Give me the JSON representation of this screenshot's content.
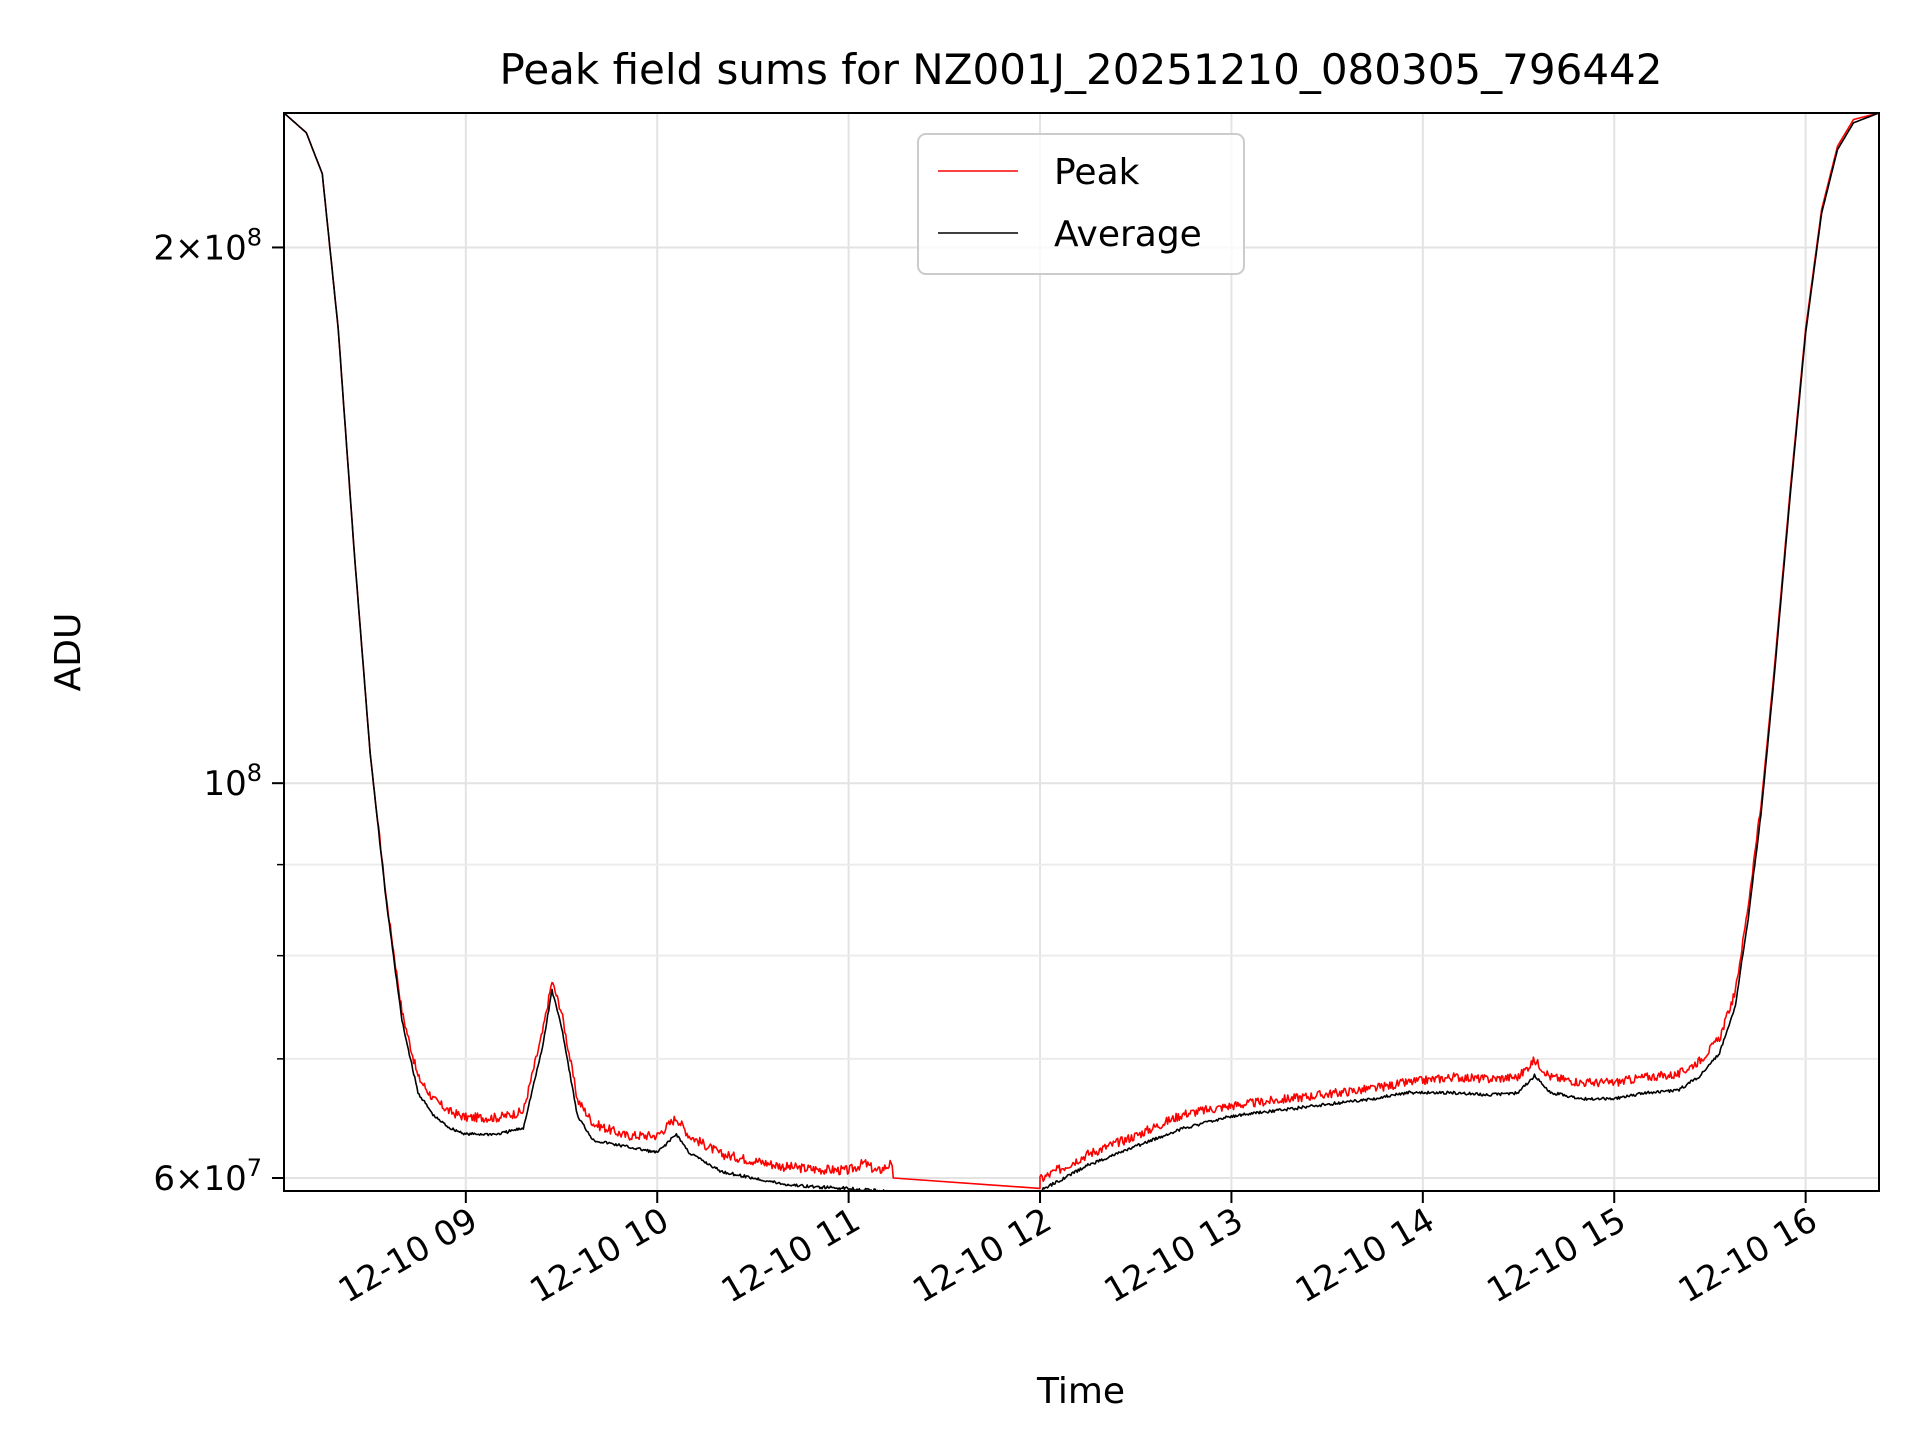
{
  "chart_data": {
    "type": "line",
    "title": "Peak field sums for NZ001J_20251210_080305_796442",
    "xlabel": "Time",
    "ylabel": "ADU",
    "yscale": "log",
    "xlim": [
      "2025-12-10 08:03",
      "2025-12-10 16:23"
    ],
    "ylim": [
      59000000,
      238000000
    ],
    "x_ticks": [
      {
        "value": "2025-12-10 09:00",
        "label": "12-10 09"
      },
      {
        "value": "2025-12-10 10:00",
        "label": "12-10 10"
      },
      {
        "value": "2025-12-10 11:00",
        "label": "12-10 11"
      },
      {
        "value": "2025-12-10 12:00",
        "label": "12-10 12"
      },
      {
        "value": "2025-12-10 13:00",
        "label": "12-10 13"
      },
      {
        "value": "2025-12-10 14:00",
        "label": "12-10 14"
      },
      {
        "value": "2025-12-10 15:00",
        "label": "12-10 15"
      },
      {
        "value": "2025-12-10 16:00",
        "label": "12-10 16"
      }
    ],
    "y_major_ticks": [
      {
        "value": 60000000,
        "mantissa": "6",
        "exponent": "7"
      },
      {
        "value": 100000000,
        "mantissa": "",
        "exponent": "8"
      },
      {
        "value": 200000000,
        "mantissa": "2",
        "exponent": "8"
      }
    ],
    "y_minor_ticks": [
      70000000,
      80000000,
      90000000
    ],
    "grid": true,
    "legend_position": "top-center",
    "series": [
      {
        "name": "Peak",
        "color": "#ff0000",
        "noise": true,
        "x": [
          "2025-12-10 08:03",
          "2025-12-10 08:10",
          "2025-12-10 08:15",
          "2025-12-10 08:20",
          "2025-12-10 08:25",
          "2025-12-10 08:30",
          "2025-12-10 08:35",
          "2025-12-10 08:40",
          "2025-12-10 08:45",
          "2025-12-10 08:50",
          "2025-12-10 08:55",
          "2025-12-10 09:00",
          "2025-12-10 09:10",
          "2025-12-10 09:18",
          "2025-12-10 09:24",
          "2025-12-10 09:27",
          "2025-12-10 09:30",
          "2025-12-10 09:35",
          "2025-12-10 09:40",
          "2025-12-10 09:50",
          "2025-12-10 10:00",
          "2025-12-10 10:06",
          "2025-12-10 10:10",
          "2025-12-10 10:20",
          "2025-12-10 10:30",
          "2025-12-10 10:40",
          "2025-12-10 10:50",
          "2025-12-10 11:00",
          "2025-12-10 11:05",
          "2025-12-10 11:09",
          "2025-12-10 11:13",
          "2025-12-10 11:14",
          "2025-12-10 12:00",
          "2025-12-10 12:00",
          "2025-12-10 12:15",
          "2025-12-10 12:30",
          "2025-12-10 12:45",
          "2025-12-10 13:00",
          "2025-12-10 13:15",
          "2025-12-10 13:30",
          "2025-12-10 13:45",
          "2025-12-10 13:55",
          "2025-12-10 14:10",
          "2025-12-10 14:20",
          "2025-12-10 14:30",
          "2025-12-10 14:35",
          "2025-12-10 14:40",
          "2025-12-10 14:50",
          "2025-12-10 15:00",
          "2025-12-10 15:10",
          "2025-12-10 15:20",
          "2025-12-10 15:27",
          "2025-12-10 15:33",
          "2025-12-10 15:38",
          "2025-12-10 15:42",
          "2025-12-10 15:46",
          "2025-12-10 15:50",
          "2025-12-10 15:55",
          "2025-12-10 16:00",
          "2025-12-10 16:05",
          "2025-12-10 16:10",
          "2025-12-10 16:15",
          "2025-12-10 16:23"
        ],
        "y": [
          238000000,
          232000000,
          220000000,
          180000000,
          135000000,
          104000000,
          86000000,
          74000000,
          68000000,
          66000000,
          65000000,
          64500000,
          64500000,
          65000000,
          72000000,
          77000000,
          74000000,
          66000000,
          64000000,
          63000000,
          63000000,
          64500000,
          63000000,
          61500000,
          61000000,
          60500000,
          60300000,
          60200000,
          60800000,
          60100000,
          60700000,
          60000000,
          59000000,
          59500000,
          61500000,
          63000000,
          64800000,
          65500000,
          66000000,
          66500000,
          67000000,
          67500000,
          68000000,
          67800000,
          68000000,
          69500000,
          68000000,
          67500000,
          67500000,
          68000000,
          68200000,
          69500000,
          71500000,
          76000000,
          85000000,
          97000000,
          115000000,
          145000000,
          180000000,
          210000000,
          228000000,
          236000000,
          238000000
        ]
      },
      {
        "name": "Average",
        "color": "#000000",
        "noise": false,
        "x": [
          "2025-12-10 08:03",
          "2025-12-10 08:10",
          "2025-12-10 08:15",
          "2025-12-10 08:20",
          "2025-12-10 08:25",
          "2025-12-10 08:30",
          "2025-12-10 08:35",
          "2025-12-10 08:40",
          "2025-12-10 08:45",
          "2025-12-10 08:50",
          "2025-12-10 08:55",
          "2025-12-10 09:00",
          "2025-12-10 09:10",
          "2025-12-10 09:18",
          "2025-12-10 09:24",
          "2025-12-10 09:27",
          "2025-12-10 09:30",
          "2025-12-10 09:35",
          "2025-12-10 09:40",
          "2025-12-10 09:50",
          "2025-12-10 10:00",
          "2025-12-10 10:06",
          "2025-12-10 10:10",
          "2025-12-10 10:20",
          "2025-12-10 10:30",
          "2025-12-10 10:40",
          "2025-12-10 10:50",
          "2025-12-10 11:00",
          "2025-12-10 11:10",
          "2025-12-10 11:15",
          "2025-12-10 12:00",
          "2025-12-10 12:15",
          "2025-12-10 12:30",
          "2025-12-10 12:45",
          "2025-12-10 13:00",
          "2025-12-10 13:15",
          "2025-12-10 13:30",
          "2025-12-10 13:45",
          "2025-12-10 13:55",
          "2025-12-10 14:10",
          "2025-12-10 14:20",
          "2025-12-10 14:30",
          "2025-12-10 14:35",
          "2025-12-10 14:40",
          "2025-12-10 14:50",
          "2025-12-10 15:00",
          "2025-12-10 15:10",
          "2025-12-10 15:20",
          "2025-12-10 15:27",
          "2025-12-10 15:33",
          "2025-12-10 15:38",
          "2025-12-10 15:42",
          "2025-12-10 15:46",
          "2025-12-10 15:50",
          "2025-12-10 15:55",
          "2025-12-10 16:00",
          "2025-12-10 16:05",
          "2025-12-10 16:10",
          "2025-12-10 16:15",
          "2025-12-10 16:23"
        ],
        "y": [
          238000000,
          232000000,
          220000000,
          180000000,
          135000000,
          104000000,
          86000000,
          73500000,
          67000000,
          65000000,
          64000000,
          63500000,
          63500000,
          64000000,
          71000000,
          76500000,
          73000000,
          65000000,
          63000000,
          62500000,
          62000000,
          63500000,
          62000000,
          60500000,
          60000000,
          59500000,
          59300000,
          59200000,
          59000000,
          58900000,
          59000000,
          61000000,
          62500000,
          64000000,
          65000000,
          65500000,
          66000000,
          66500000,
          67000000,
          67000000,
          66800000,
          67000000,
          68500000,
          67000000,
          66500000,
          66500000,
          67000000,
          67200000,
          68500000,
          70500000,
          75000000,
          84000000,
          96000000,
          114000000,
          144000000,
          179000000,
          209000000,
          227000000,
          235000000,
          238000000
        ]
      }
    ]
  }
}
